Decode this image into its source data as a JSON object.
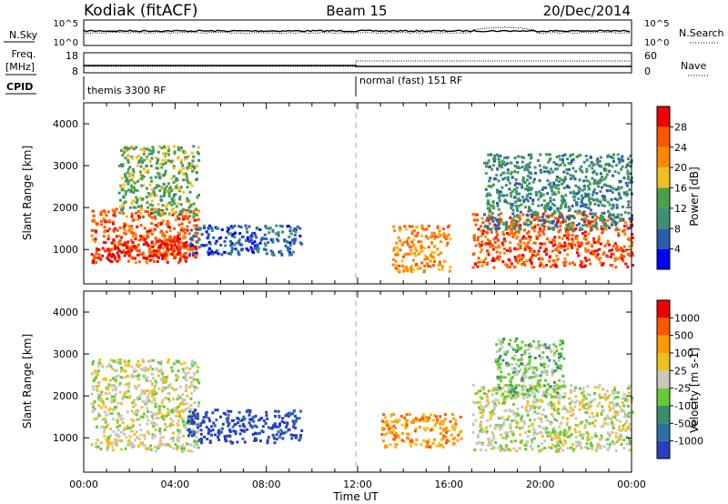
{
  "header": {
    "station": "Kodiak (fitACF)",
    "beam": "Beam 15",
    "date": "20/Dec/2014"
  },
  "top_panels": {
    "nsky_label": "N.Sky",
    "nsky_scale_top": "10^5",
    "nsky_scale_bottom": "10^0",
    "nsearch_label": "N.Search",
    "nsearch_scale_top": "10^5",
    "nsearch_scale_bottom": "10^0",
    "freq_label": "Freq.",
    "freq_unit": "[MHz]",
    "freq_ticks": [
      "18",
      "8"
    ],
    "nave_label": "Nave",
    "nave_ticks": [
      "60",
      "0"
    ],
    "cpid_label": "CPID",
    "cpid_segments": [
      "themis 3300 RF",
      "normal (fast) 151 RF"
    ]
  },
  "axes": {
    "ylabel": "Slant Range [km]",
    "y_ticks": [
      "1000",
      "2000",
      "3000",
      "4000"
    ],
    "x_ticks": [
      "00:00",
      "04:00",
      "08:00",
      "12:00",
      "16:00",
      "20:00",
      "00:00"
    ],
    "xlabel": "Time UT"
  },
  "colors": {
    "power": [
      "#0000ff",
      "#2a5fb0",
      "#3f8f74",
      "#4aa04a",
      "#f0c020",
      "#ff8800",
      "#ff5500",
      "#ee0000"
    ],
    "velocity": [
      "#2a3fc0",
      "#2f6fa8",
      "#3a8f6a",
      "#66cc33",
      "#c8c8c0",
      "#f0c020",
      "#ff9900",
      "#ff5500",
      "#ee0000"
    ]
  },
  "chart_data": [
    {
      "type": "heatmap",
      "name": "power",
      "xlabel": "Time UT",
      "ylabel": "Slant Range [km]",
      "xlim": [
        0,
        24
      ],
      "ylim": [
        180,
        4500
      ],
      "colorbar_label": "Power [dB]",
      "colorbar_ticks": [
        "4",
        "8",
        "12",
        "16",
        "20",
        "24",
        "28"
      ],
      "regions": [
        {
          "t": [
            0.3,
            5.0
          ],
          "r": [
            700,
            2000
          ],
          "level": 6
        },
        {
          "t": [
            0.6,
            4.5
          ],
          "r": [
            800,
            1300
          ],
          "level": 7
        },
        {
          "t": [
            1.5,
            5.0
          ],
          "r": [
            1800,
            3500
          ],
          "level": 3
        },
        {
          "t": [
            4.5,
            9.5
          ],
          "r": [
            900,
            1600
          ],
          "level": 1
        },
        {
          "t": [
            13.5,
            16.0
          ],
          "r": [
            500,
            1600
          ],
          "level": 5
        },
        {
          "t": [
            17.0,
            24.0
          ],
          "r": [
            600,
            1900
          ],
          "level": 6
        },
        {
          "t": [
            17.5,
            24.0
          ],
          "r": [
            1500,
            3300
          ],
          "level": 2
        }
      ]
    },
    {
      "type": "heatmap",
      "name": "velocity",
      "xlabel": "Time UT",
      "ylabel": "Slant Range [km]",
      "xlim": [
        0,
        24
      ],
      "ylim": [
        180,
        4500
      ],
      "colorbar_label": "Velocity [m s-1]",
      "colorbar_ticks": [
        "1000",
        "500",
        "100",
        "25",
        "-25",
        "-100",
        "-500",
        "-1000"
      ],
      "regions": [
        {
          "t": [
            0.3,
            5.0
          ],
          "r": [
            700,
            2900
          ],
          "level": 4
        },
        {
          "t": [
            4.5,
            9.5
          ],
          "r": [
            900,
            1700
          ],
          "level": 0
        },
        {
          "t": [
            13.0,
            16.5
          ],
          "r": [
            800,
            1600
          ],
          "level": 6
        },
        {
          "t": [
            17.0,
            24.0
          ],
          "r": [
            700,
            2300
          ],
          "level": 4
        },
        {
          "t": [
            18.0,
            21.0
          ],
          "r": [
            2000,
            3400
          ],
          "level": 3
        }
      ]
    }
  ]
}
